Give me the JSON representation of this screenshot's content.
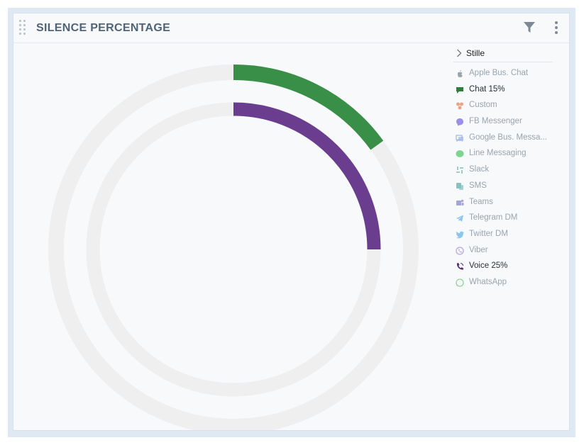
{
  "widget": {
    "title": "SILENCE PERCENTAGE"
  },
  "icons": {
    "drag": "drag-handle-icon",
    "filter": "filter-icon",
    "more": "more-vertical-icon"
  },
  "colors": {
    "track": "#efefef",
    "chat": "#3a8f48",
    "voice": "#6a3d8f"
  },
  "legend": {
    "group_label": "Stille",
    "items": [
      {
        "label": "Apple Bus. Chat",
        "icon": "apple-icon",
        "color": "#9aa4ad",
        "active": false
      },
      {
        "label": "Chat 15%",
        "icon": "chat-bubble-icon",
        "color": "#2e7d3a",
        "active": true
      },
      {
        "label": "Custom",
        "icon": "custom-icon",
        "color": "#e8a483",
        "active": false
      },
      {
        "label": "FB Messenger",
        "icon": "messenger-icon",
        "color": "#9b8ee8",
        "active": false
      },
      {
        "label": "Google Bus. Messa...",
        "icon": "google-business-icon",
        "color": "#9bb7e6",
        "active": false
      },
      {
        "label": "Line Messaging",
        "icon": "line-icon",
        "color": "#7dd58f",
        "active": false
      },
      {
        "label": "Slack",
        "icon": "slack-icon",
        "color": "#9ad0c4",
        "active": false
      },
      {
        "label": "SMS",
        "icon": "sms-icon",
        "color": "#86c2c0",
        "active": false
      },
      {
        "label": "Teams",
        "icon": "teams-icon",
        "color": "#a4a4d8",
        "active": false
      },
      {
        "label": "Telegram DM",
        "icon": "telegram-icon",
        "color": "#8ec6ea",
        "active": false
      },
      {
        "label": "Twitter DM",
        "icon": "twitter-icon",
        "color": "#8ec6ea",
        "active": false
      },
      {
        "label": "Viber",
        "icon": "viber-icon",
        "color": "#b9a6e0",
        "active": false
      },
      {
        "label": "Voice 25%",
        "icon": "phone-icon",
        "color": "#5b2d7a",
        "active": true
      },
      {
        "label": "WhatsApp",
        "icon": "whatsapp-icon",
        "color": "#8fd49a",
        "active": false
      }
    ]
  },
  "chart_data": {
    "type": "pie",
    "variant": "radial-bar",
    "title": "SILENCE PERCENTAGE",
    "max": 100,
    "series": [
      {
        "name": "Chat",
        "value": 15,
        "color": "#3a8f48",
        "ring": "outer"
      },
      {
        "name": "Voice",
        "value": 25,
        "color": "#6a3d8f",
        "ring": "inner"
      }
    ],
    "legend_position": "right"
  }
}
